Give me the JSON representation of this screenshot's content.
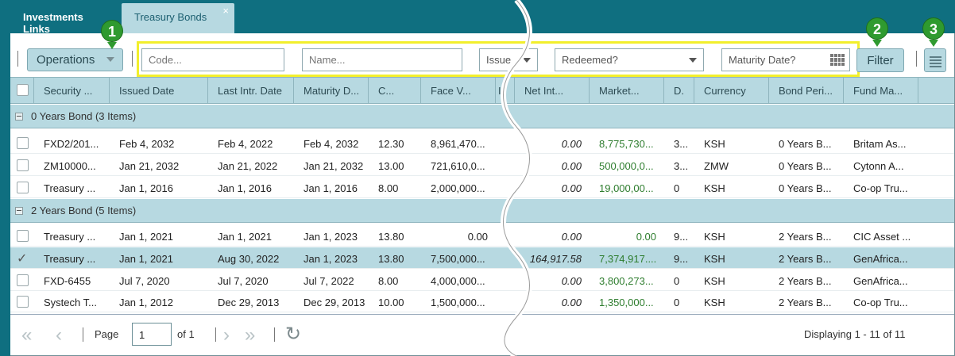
{
  "tabs": [
    {
      "label": "Investments Links"
    },
    {
      "label": "Treasury Bonds",
      "close": "×"
    }
  ],
  "toolbar": {
    "operations_label": "Operations",
    "code_placeholder": "Code...",
    "name_placeholder": "Name...",
    "issue_label": "Issue",
    "redeemed_label": "Redeemed?",
    "maturity_date_placeholder": "Maturity Date?",
    "filter_label": "Filter",
    "callouts": [
      "1",
      "2",
      "3"
    ],
    "highlight_color": "#f2ef2c"
  },
  "grid": {
    "columns": [
      "Security ...",
      "Issued Date",
      "Last Intr. Date",
      "Maturity D...",
      "C...",
      "Face V...",
      "In",
      "Net Int...",
      "Market...",
      "D.",
      "Currency",
      "Bond Peri...",
      "Fund Ma..."
    ],
    "groups": [
      {
        "label": "0 Years Bond (3 Items)",
        "rows": [
          {
            "security": "FXD2/201...",
            "issued": "Feb 4, 2032",
            "last_intr": "Feb 4, 2022",
            "maturity": "Feb 4, 2032",
            "c": "12.30",
            "face": "8,961,470...",
            "net_int": "0.00",
            "market": "8,775,730...",
            "d": "3...",
            "currency": "KSH",
            "bond_period": "0 Years B...",
            "fund": "Britam As...",
            "checked": false
          },
          {
            "security": "ZM10000...",
            "issued": "Jan 21, 2032",
            "last_intr": "Jan 21, 2022",
            "maturity": "Jan 21, 2032",
            "c": "13.00",
            "face": "721,610,0...",
            "net_int": "0.00",
            "market": "500,000,0...",
            "d": "3...",
            "currency": "ZMW",
            "bond_period": "0 Years B...",
            "fund": "Cytonn A...",
            "checked": false
          },
          {
            "security": "Treasury ...",
            "issued": "Jan 1, 2016",
            "last_intr": "Jan 1, 2016",
            "maturity": "Jan 1, 2016",
            "c": "8.00",
            "face": "2,000,000...",
            "net_int": "0.00",
            "market": "19,000,00...",
            "d": "0",
            "currency": "KSH",
            "bond_period": "0 Years B...",
            "fund": "Co-op Tru...",
            "checked": false
          }
        ]
      },
      {
        "label": "2 Years Bond (5 Items)",
        "rows": [
          {
            "security": "Treasury ...",
            "issued": "Jan 1, 2021",
            "last_intr": "Jan 1, 2021",
            "maturity": "Jan 1, 2023",
            "c": "13.80",
            "face": "0.00",
            "net_int": "0.00",
            "market": "0.00",
            "d": "9...",
            "currency": "KSH",
            "bond_period": "2 Years B...",
            "fund": "CIC Asset ...",
            "checked": false
          },
          {
            "security": "Treasury ...",
            "issued": "Jan 1, 2021",
            "last_intr": "Aug 30, 2022",
            "maturity": "Jan 1, 2023",
            "c": "13.80",
            "face": "7,500,000...",
            "net_int": "164,917.58",
            "market": "7,374,917....",
            "d": "9...",
            "currency": "KSH",
            "bond_period": "2 Years B...",
            "fund": "GenAfrica...",
            "checked": true
          },
          {
            "security": "FXD-6455",
            "issued": "Jul 7, 2020",
            "last_intr": "Jul 7, 2020",
            "maturity": "Jul 7, 2022",
            "c": "8.00",
            "face": "4,000,000...",
            "net_int": "0.00",
            "market": "3,800,273...",
            "d": "0",
            "currency": "KSH",
            "bond_period": "2 Years B...",
            "fund": "GenAfrica...",
            "checked": false
          },
          {
            "security": "Systech T...",
            "issued": "Jan 1, 2012",
            "last_intr": "Dec 29, 2013",
            "maturity": "Dec 29, 2013",
            "c": "10.00",
            "face": "1,500,000...",
            "net_int": "0.00",
            "market": "1,350,000...",
            "d": "0",
            "currency": "KSH",
            "bond_period": "2 Years B...",
            "fund": "Co-op Tru...",
            "checked": false
          }
        ]
      }
    ]
  },
  "pager": {
    "page_label": "Page",
    "page_value": "1",
    "of_label": "of 1",
    "display_text": "Displaying 1 - 11 of 11"
  }
}
